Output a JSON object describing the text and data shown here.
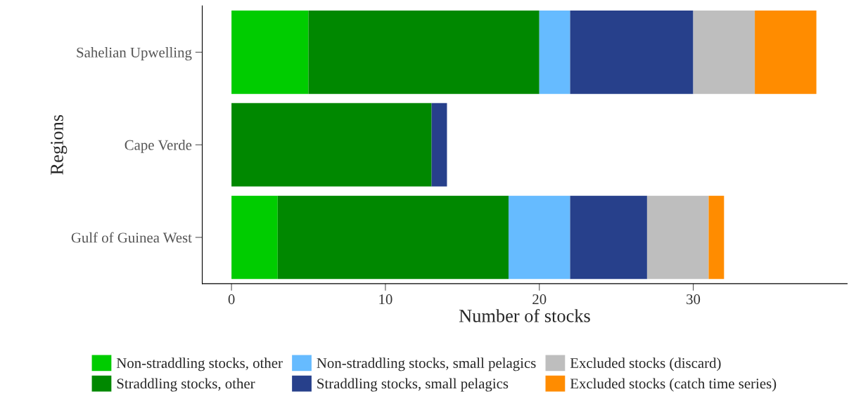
{
  "chart_data": {
    "type": "bar",
    "orientation": "horizontal",
    "stacked": true,
    "xlabel": "Number of stocks",
    "ylabel": "Regions",
    "categories": [
      "Sahelian Upwelling",
      "Cape Verde",
      "Gulf of Guinea West"
    ],
    "series": [
      {
        "name": "Non-straddling stocks, other",
        "color": "#00cc00",
        "values": [
          5,
          0,
          3
        ]
      },
      {
        "name": "Straddling stocks, other",
        "color": "#008800",
        "values": [
          15,
          13,
          15
        ]
      },
      {
        "name": "Non-straddling stocks, small pelagics",
        "color": "#66bbff",
        "values": [
          2,
          0,
          4
        ]
      },
      {
        "name": "Straddling stocks, small pelagics",
        "color": "#27408b",
        "values": [
          8,
          1,
          5
        ]
      },
      {
        "name": "Excluded stocks (discard)",
        "color": "#bebebe",
        "values": [
          4,
          0,
          4
        ]
      },
      {
        "name": "Excluded stocks (catch time series)",
        "color": "#ff8c00",
        "values": [
          4,
          0,
          1
        ]
      }
    ],
    "xlim": [
      -1.9,
      40
    ],
    "xticks": [
      0,
      10,
      20,
      30
    ],
    "grid": false,
    "legend": "bottom"
  }
}
